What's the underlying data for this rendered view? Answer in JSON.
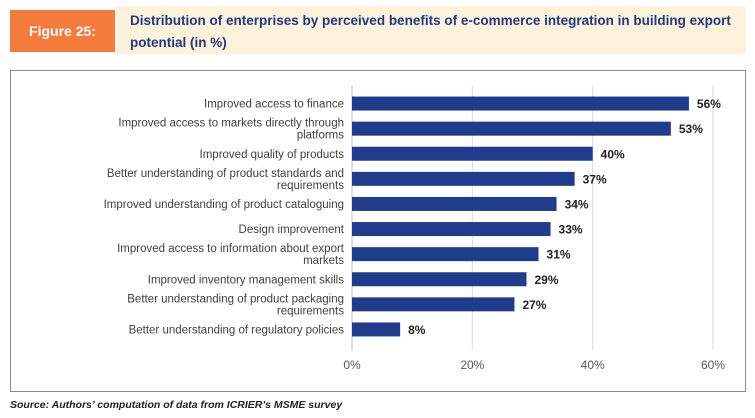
{
  "figure": {
    "label": "Figure 25:",
    "title": "Distribution of enterprises by perceived benefits of e-commerce integration in building export potential (in %)",
    "source": "Source: Authors’ computation of data from ICRIER’s MSME survey"
  },
  "colors": {
    "bar": "#1f3d8c",
    "label_bg": "#f47b3b",
    "title_bg": "#fdf3dc",
    "title_text": "#1e3a86"
  },
  "chart_data": {
    "type": "bar",
    "orientation": "horizontal",
    "categories": [
      "Improved access to finance",
      "Improved access to markets directly through platforms",
      "Improved quality of products",
      "Better understanding of product standards and requirements",
      "Improved understanding of product cataloguing",
      "Design improvement",
      "Improved access to information about export markets",
      "Improved inventory management skills",
      "Better understanding of product packaging requirements",
      "Better understanding of regulatory policies"
    ],
    "values": [
      56,
      53,
      40,
      37,
      34,
      33,
      31,
      29,
      27,
      8
    ],
    "data_labels": [
      "56%",
      "53%",
      "40%",
      "37%",
      "34%",
      "33%",
      "31%",
      "29%",
      "27%",
      "8%"
    ],
    "xlim": [
      0,
      60
    ],
    "xticks": [
      "0%",
      "20%",
      "40%",
      "60%"
    ],
    "grid": true
  }
}
